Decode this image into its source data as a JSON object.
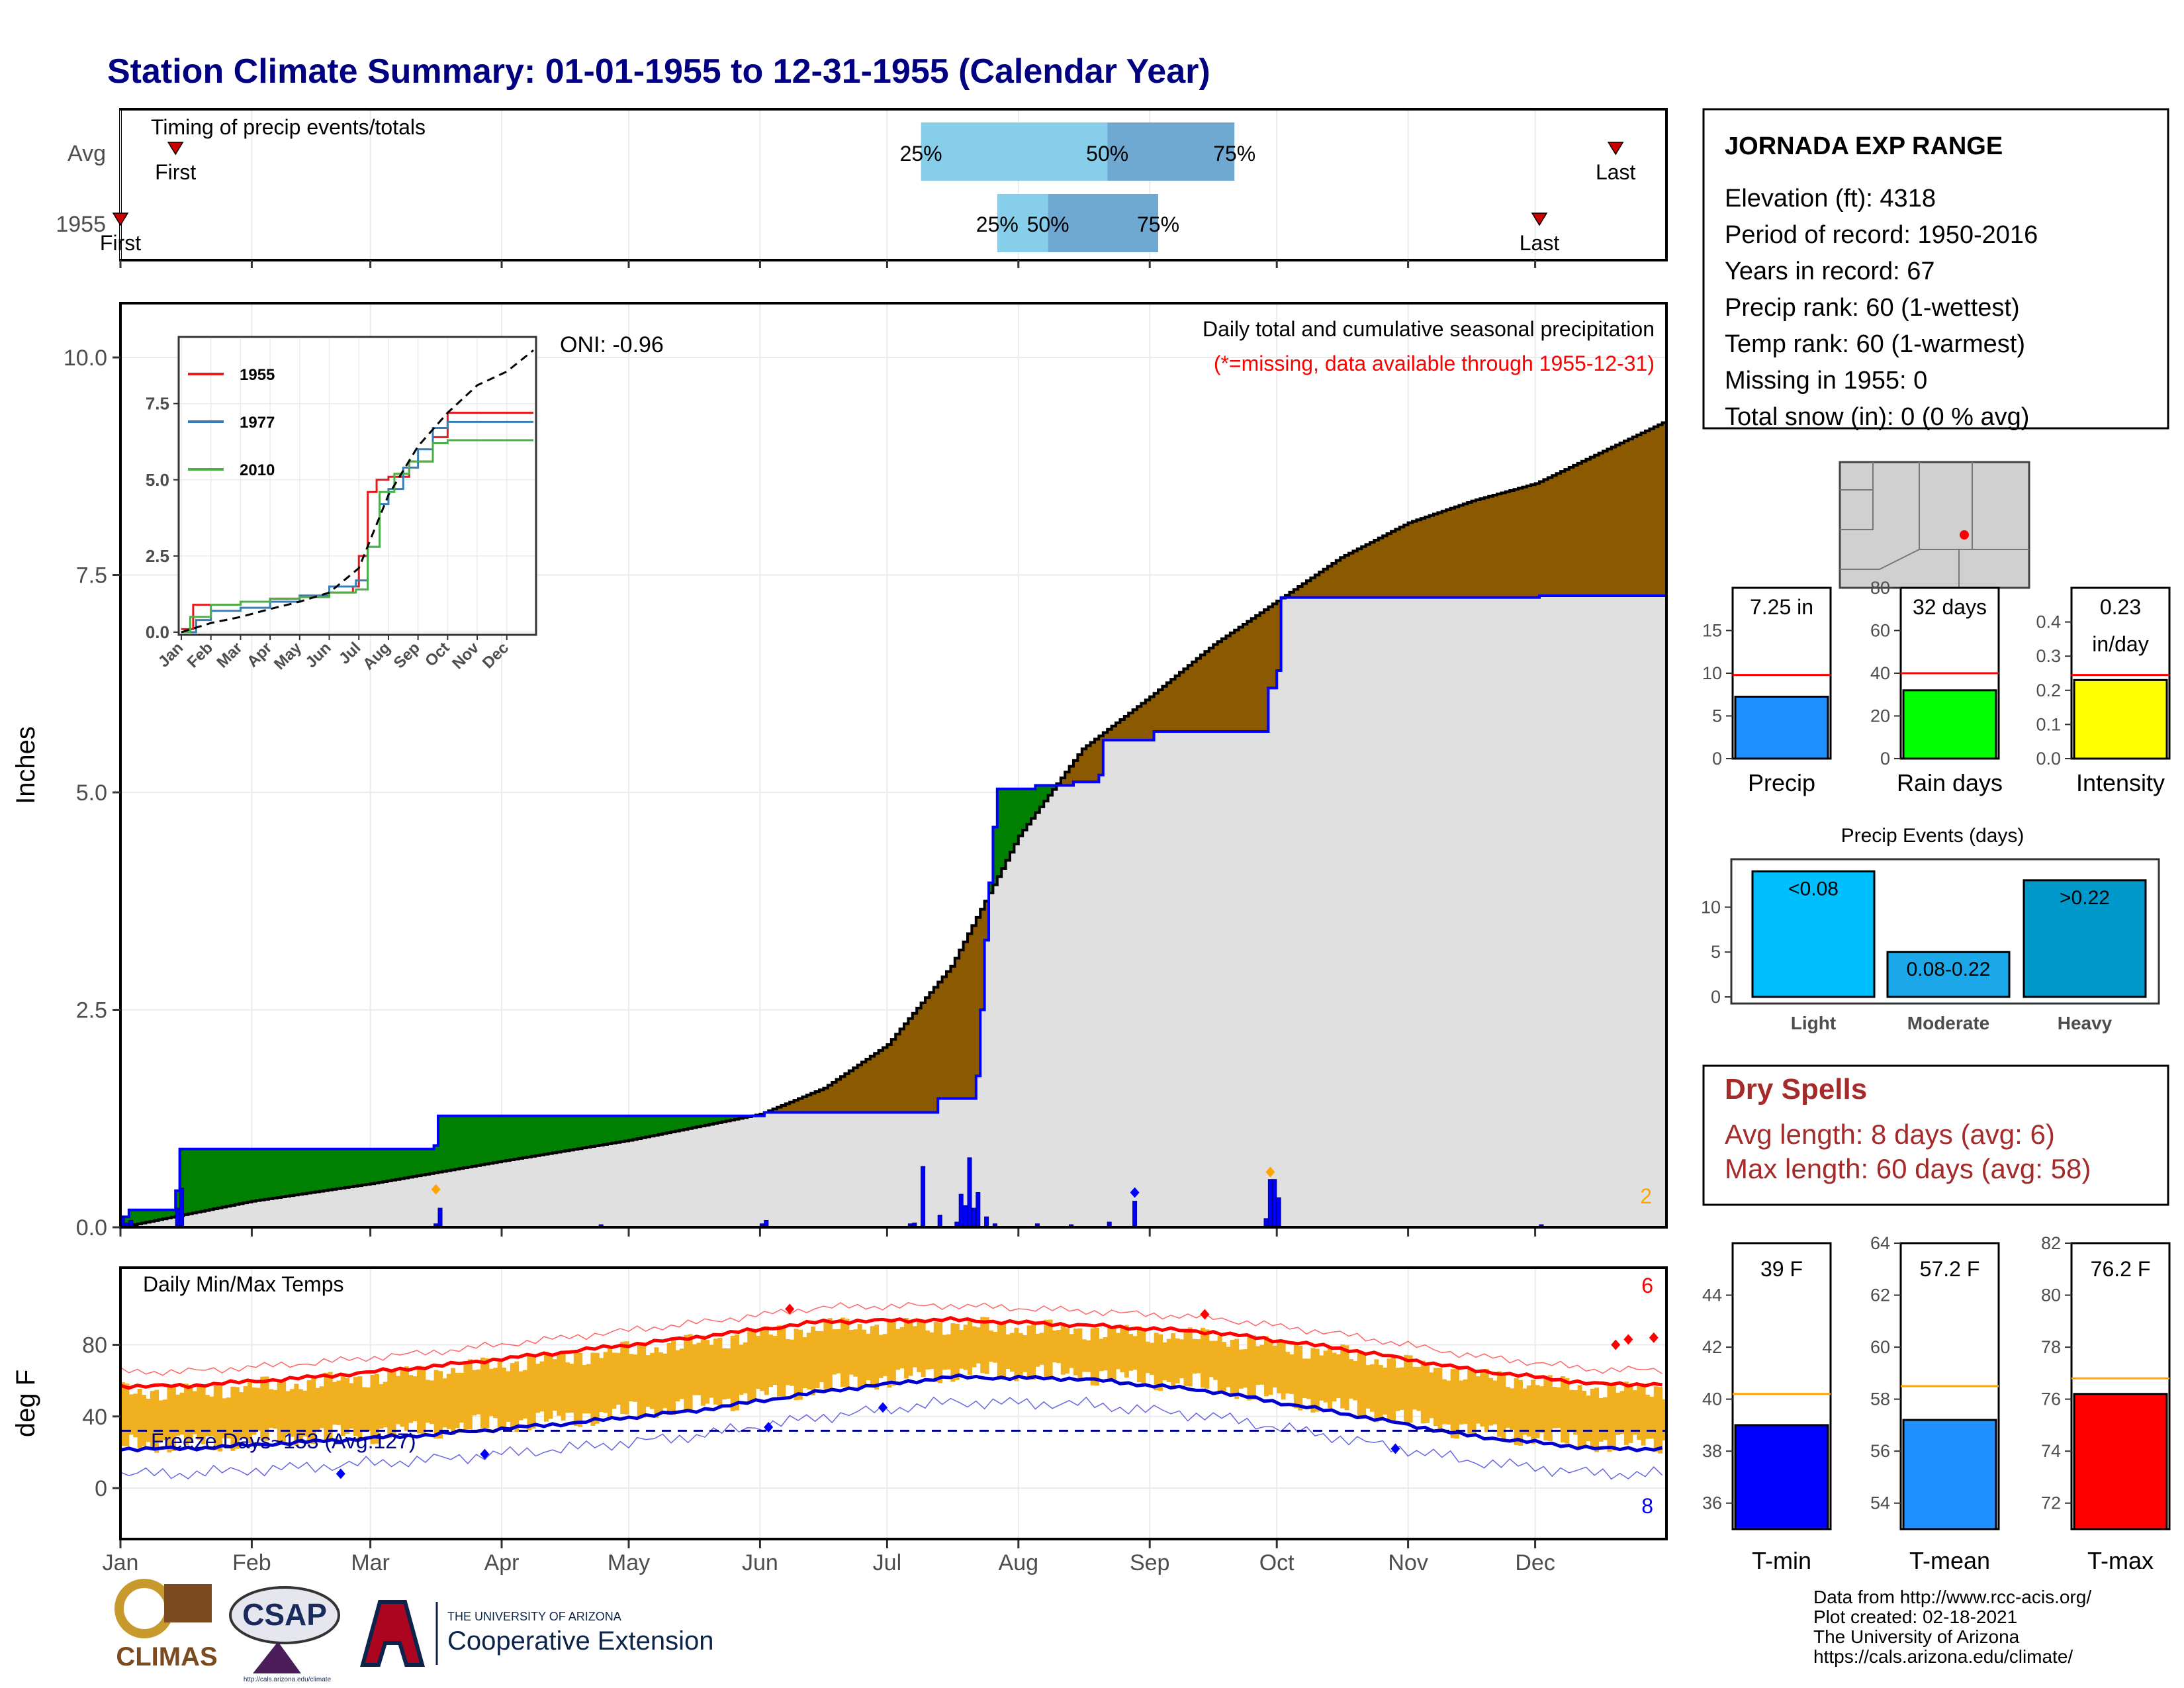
{
  "page": {
    "title": "Station Climate Summary: 01-01-1955 to 12-31-1955 (Calendar Year)",
    "footer_lines": [
      "Data from http://www.rcc-acis.org/",
      "Plot created: 02-18-2021",
      "The University of Arizona",
      "https://cals.arizona.edu/climate/"
    ],
    "logos": {
      "climas": "CLIMAS",
      "csap": "CSAP",
      "csap_url": "http://cals.arizona.edu/climate",
      "ua_small": "THE UNIVERSITY OF ARIZONA",
      "ua_big": "Cooperative Extension"
    }
  },
  "station": {
    "name": "JORNADA EXP RANGE",
    "lines": [
      "Elevation (ft): 4318",
      "Period of record: 1950-2016",
      "Years in record: 67",
      "Precip rank: 60 (1-wettest)",
      "Temp rank: 60 (1-warmest)",
      "Missing in 1955: 0",
      "Total snow (in): 0 (0 % avg)"
    ]
  },
  "dry_spells": {
    "title": "Dry Spells",
    "avg": "Avg length: 8 days (avg: 6)",
    "max": "Max length: 60 days (avg: 58)"
  },
  "chart_data": [
    {
      "id": "timing",
      "type": "bar",
      "title": "Timing of precip events/totals",
      "row_labels": [
        "Avg",
        "1955"
      ],
      "rows": [
        {
          "label": "Avg",
          "q25": "Jul 9",
          "q50": "Aug 22",
          "q75": "Sep 21",
          "first": "Jan 14",
          "last": "Dec 20",
          "first_label": "First",
          "last_label": "Last",
          "p25_label": "25%",
          "p50_label": "50%",
          "p75_label": "75%"
        },
        {
          "label": "1955",
          "q25": "Jul 27",
          "q50": "Aug 8",
          "q75": "Sep 3",
          "first": "Jan 1",
          "last": "Dec 2",
          "first_label": "First",
          "last_label": "Last",
          "p25_label": "25%",
          "p50_label": "50%",
          "p75_label": "75%"
        }
      ],
      "colors": {
        "q25_q50": "#87CEEB",
        "q50_q75": "#6FA8D0"
      }
    },
    {
      "id": "precip",
      "type": "area",
      "title": "Daily total and cumulative seasonal precipitation",
      "subtitle": "(*=missing, data available through 1955-12-31)",
      "ylabel": "Inches",
      "ylim": [
        0,
        10
      ],
      "yticks": [
        "0.0",
        "2.5",
        "5.0",
        "7.5",
        "10.0"
      ],
      "oni": "ONI: -0.96",
      "corner_count": "2",
      "series": [
        {
          "name": "1955 cumulative",
          "points": [
            [
              "Jan 1",
              0.12
            ],
            [
              "Jan 3",
              0.2
            ],
            [
              "Jan 13",
              0.2
            ],
            [
              "Jan 14",
              0.42
            ],
            [
              "Jan 15",
              0.9
            ],
            [
              "Mar 15",
              0.9
            ],
            [
              "Mar 16",
              0.94
            ],
            [
              "Mar 17",
              1.28
            ],
            [
              "Jun 1",
              1.28
            ],
            [
              "Jun 2",
              1.32
            ],
            [
              "Jul 12",
              1.32
            ],
            [
              "Jul 13",
              1.48
            ],
            [
              "Jul 21",
              1.48
            ],
            [
              "Jul 22",
              1.74
            ],
            [
              "Jul 23",
              2.5
            ],
            [
              "Jul 24",
              3.3
            ],
            [
              "Jul 25",
              3.96
            ],
            [
              "Jul 26",
              4.6
            ],
            [
              "Jul 27",
              5.04
            ],
            [
              "Aug 5",
              5.08
            ],
            [
              "Aug 14",
              5.12
            ],
            [
              "Aug 16",
              5.12
            ],
            [
              "Aug 20",
              5.2
            ],
            [
              "Aug 21",
              5.6
            ],
            [
              "Sep 1",
              5.6
            ],
            [
              "Sep 2",
              5.7
            ],
            [
              "Sep 28",
              5.7
            ],
            [
              "Sep 29",
              6.2
            ],
            [
              "Oct 1",
              6.4
            ],
            [
              "Oct 2",
              7.24
            ],
            [
              "Dec 1",
              7.24
            ],
            [
              "Dec 2",
              7.26
            ],
            [
              "Dec 31",
              7.26
            ]
          ]
        },
        {
          "name": "Average cumulative",
          "points": [
            [
              "Jan 1",
              0
            ],
            [
              "Feb 1",
              0.3
            ],
            [
              "Mar 1",
              0.5
            ],
            [
              "Apr 1",
              0.76
            ],
            [
              "May 1",
              1.0
            ],
            [
              "Jun 1",
              1.3
            ],
            [
              "Jun 16",
              1.6
            ],
            [
              "Jul 1",
              2.1
            ],
            [
              "Jul 16",
              3.0
            ],
            [
              "Aug 1",
              4.5
            ],
            [
              "Aug 16",
              5.5
            ],
            [
              "Sep 1",
              6.1
            ],
            [
              "Sep 16",
              6.7
            ],
            [
              "Oct 1",
              7.2
            ],
            [
              "Oct 16",
              7.7
            ],
            [
              "Nov 1",
              8.1
            ],
            [
              "Nov 16",
              8.35
            ],
            [
              "Dec 1",
              8.55
            ],
            [
              "Dec 16",
              8.9
            ],
            [
              "Dec 31",
              9.25
            ]
          ]
        }
      ],
      "daily_bars": [
        [
          "Jan 1",
          0.12
        ],
        [
          "Jan 2",
          0.05
        ],
        [
          "Jan 3",
          0.08
        ],
        [
          "Jan 14",
          0.22
        ],
        [
          "Jan 15",
          0.45
        ],
        [
          "Mar 16",
          0.04
        ],
        [
          "Mar 17",
          0.22
        ],
        [
          "Apr 24",
          0.03
        ],
        [
          "Jun 2",
          0.08
        ],
        [
          "Jun 1",
          0.04
        ],
        [
          "Jul 6",
          0.04
        ],
        [
          "Jul 7",
          0.05
        ],
        [
          "Jul 9",
          0.7
        ],
        [
          "Jul 13",
          0.14
        ],
        [
          "Jul 17",
          0.06
        ],
        [
          "Jul 18",
          0.38
        ],
        [
          "Jul 19",
          0.25
        ],
        [
          "Jul 20",
          0.8
        ],
        [
          "Jul 21",
          0.22
        ],
        [
          "Jul 22",
          0.4
        ],
        [
          "Jul 24",
          0.12
        ],
        [
          "Jul 26",
          0.04
        ],
        [
          "Aug 5",
          0.04
        ],
        [
          "Aug 13",
          0.03
        ],
        [
          "Aug 22",
          0.06
        ],
        [
          "Aug 28",
          0.3
        ],
        [
          "Sep 28",
          0.1
        ],
        [
          "Sep 29",
          0.55
        ],
        [
          "Sep 30",
          0.55
        ],
        [
          "Oct 1",
          0.34
        ],
        [
          "Dec 2",
          0.03
        ]
      ],
      "colors": {
        "surplus": "#008000",
        "deficit": "#8B5A00",
        "cum_line": "#0000FF",
        "fill": "#E0E0E0",
        "bars": "#0000FF",
        "snow_marker": "#FFA500"
      },
      "inset": {
        "type": "line",
        "yticks": [
          "0.0",
          "2.5",
          "5.0",
          "7.5"
        ],
        "months": [
          "Jan",
          "Feb",
          "Mar",
          "Apr",
          "May",
          "Jun",
          "Jul",
          "Aug",
          "Sep",
          "Oct",
          "Nov",
          "Dec"
        ],
        "series": [
          {
            "name": "1955",
            "color": "#E41A1C",
            "points": [
              [
                0,
                0.1
              ],
              [
                0.4,
                0.9
              ],
              [
                1,
                0.9
              ],
              [
                2,
                1.0
              ],
              [
                3,
                1.1
              ],
              [
                4,
                1.2
              ],
              [
                5,
                1.3
              ],
              [
                5.8,
                1.5
              ],
              [
                6,
                2.5
              ],
              [
                6.3,
                4.6
              ],
              [
                6.6,
                5.0
              ],
              [
                7,
                5.1
              ],
              [
                7.7,
                5.6
              ],
              [
                8.5,
                6.4
              ],
              [
                9,
                7.2
              ],
              [
                11.9,
                7.2
              ]
            ]
          },
          {
            "name": "1977",
            "color": "#377EB8",
            "points": [
              [
                0,
                0
              ],
              [
                0.5,
                0.4
              ],
              [
                1,
                0.7
              ],
              [
                2,
                0.8
              ],
              [
                3,
                1.0
              ],
              [
                4,
                1.2
              ],
              [
                5,
                1.5
              ],
              [
                5.9,
                1.7
              ],
              [
                6.3,
                2.8
              ],
              [
                6.7,
                4.2
              ],
              [
                7,
                4.7
              ],
              [
                7.5,
                5.4
              ],
              [
                8,
                6.0
              ],
              [
                8.5,
                6.7
              ],
              [
                9,
                6.9
              ],
              [
                11.9,
                6.9
              ]
            ]
          },
          {
            "name": "2010",
            "color": "#4DAF4A",
            "points": [
              [
                0,
                0
              ],
              [
                0.3,
                0.5
              ],
              [
                1,
                0.9
              ],
              [
                2,
                1.0
              ],
              [
                3,
                1.1
              ],
              [
                4,
                1.15
              ],
              [
                5,
                1.3
              ],
              [
                5.9,
                1.4
              ],
              [
                6.3,
                2.8
              ],
              [
                6.7,
                4.6
              ],
              [
                7.2,
                5.2
              ],
              [
                7.7,
                5.6
              ],
              [
                8.5,
                6.2
              ],
              [
                9,
                6.3
              ],
              [
                11.9,
                6.3
              ]
            ]
          },
          {
            "name": "Average",
            "color": "#000000",
            "dash": true,
            "points": [
              [
                0,
                0
              ],
              [
                1,
                0.3
              ],
              [
                2,
                0.5
              ],
              [
                3,
                0.76
              ],
              [
                4,
                1.0
              ],
              [
                5,
                1.3
              ],
              [
                6,
                2.1
              ],
              [
                7,
                4.5
              ],
              [
                8,
                6.1
              ],
              [
                9,
                7.2
              ],
              [
                10,
                8.1
              ],
              [
                11,
                8.55
              ],
              [
                11.9,
                9.25
              ]
            ]
          }
        ]
      }
    },
    {
      "id": "temps",
      "type": "line",
      "title": "Daily Min/Max Temps",
      "ylabel": "deg F",
      "yticks": [
        "0",
        "40",
        "80"
      ],
      "freeze_label": "Freeze Days~153 (Avg:127)",
      "freeze_line": 32,
      "record_high_count": "6",
      "record_low_count": "8",
      "months": [
        "Jan",
        "Feb",
        "Mar",
        "Apr",
        "May",
        "Jun",
        "Jul",
        "Aug",
        "Sep",
        "Oct",
        "Nov",
        "Dec"
      ],
      "avg_max_monthly": [
        57,
        62,
        68,
        76,
        84,
        93,
        94,
        91,
        87,
        78,
        66,
        58
      ],
      "avg_min_monthly": [
        22,
        26,
        30,
        36,
        43,
        54,
        62,
        61,
        54,
        42,
        29,
        22
      ],
      "colors": {
        "bars": "#F0B020",
        "max": "#FF0000",
        "min": "#0000CD"
      }
    },
    {
      "id": "summary_bars",
      "type": "bar",
      "panels": [
        {
          "label": "Precip",
          "value": 7.25,
          "value_label": "7.25 in",
          "avg": 9.8,
          "ylim": [
            0,
            20
          ],
          "yticks": [
            "0",
            "5",
            "10",
            "15"
          ],
          "color": "#1E90FF",
          "avg_color": "#FF0000"
        },
        {
          "label": "Rain days",
          "value": 32,
          "value_label": "32 days",
          "avg": 40,
          "ylim": [
            0,
            80
          ],
          "yticks": [
            "0",
            "20",
            "40",
            "60",
            "80"
          ],
          "color": "#00FF00",
          "avg_color": "#FF0000"
        },
        {
          "label": "Intensity",
          "value": 0.23,
          "value_label": "0.23",
          "value_label2": "in/day",
          "avg": 0.245,
          "ylim": [
            0,
            0.5
          ],
          "yticks": [
            "0.0",
            "0.1",
            "0.2",
            "0.3",
            "0.4"
          ],
          "color": "#FFFF00",
          "avg_color": "#FF0000"
        }
      ]
    },
    {
      "id": "precip_events",
      "type": "bar",
      "title": "Precip Events (days)",
      "categories": [
        "Light",
        "Moderate",
        "Heavy"
      ],
      "values": [
        14,
        5,
        13
      ],
      "bar_labels": [
        "<0.08",
        "0.08-0.22",
        ">0.22"
      ],
      "yticks": [
        "0",
        "5",
        "10"
      ],
      "colors": [
        "#00BFFF",
        "#1CA8E8",
        "#0099CC"
      ]
    },
    {
      "id": "temp_bars",
      "type": "bar",
      "panels": [
        {
          "label": "T-min",
          "value": 39,
          "value_label": "39 F",
          "avg": 40.2,
          "ylim": [
            35,
            46
          ],
          "yticks": [
            "36",
            "38",
            "40",
            "42",
            "44"
          ],
          "color": "#0000FF",
          "avg_color": "#FFA500"
        },
        {
          "label": "T-mean",
          "value": 57.2,
          "value_label": "57.2 F",
          "avg": 58.5,
          "ylim": [
            53,
            64
          ],
          "yticks": [
            "54",
            "56",
            "58",
            "60",
            "62",
            "64"
          ],
          "color": "#1E90FF",
          "avg_color": "#FFA500"
        },
        {
          "label": "T-max",
          "value": 76.2,
          "value_label": "76.2 F",
          "avg": 76.8,
          "ylim": [
            71,
            82
          ],
          "yticks": [
            "72",
            "74",
            "76",
            "78",
            "80",
            "82"
          ],
          "color": "#FF0000",
          "avg_color": "#FFA500"
        }
      ]
    }
  ]
}
